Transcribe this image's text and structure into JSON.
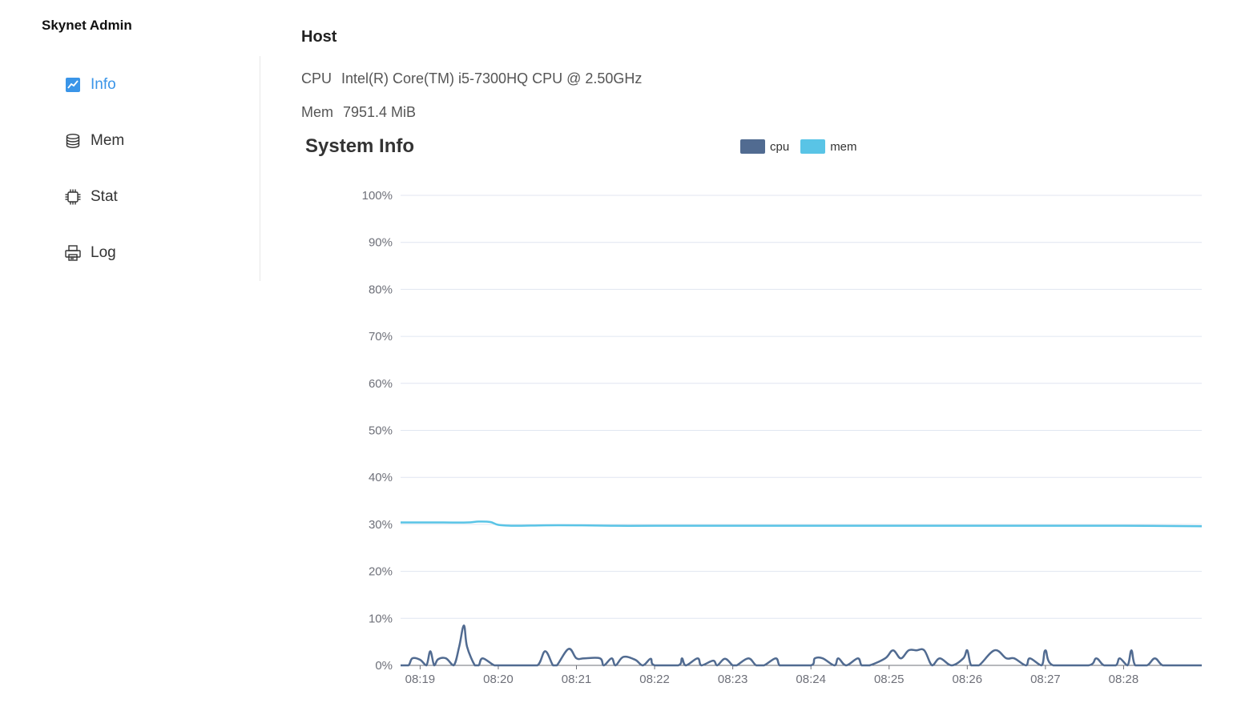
{
  "app": {
    "title": "Skynet Admin"
  },
  "sidebar": {
    "items": [
      {
        "label": "Info",
        "icon": "line-chart-icon",
        "active": true
      },
      {
        "label": "Mem",
        "icon": "database-icon",
        "active": false
      },
      {
        "label": "Stat",
        "icon": "chip-icon",
        "active": false
      },
      {
        "label": "Log",
        "icon": "printer-icon",
        "active": false
      }
    ]
  },
  "host": {
    "title": "Host",
    "cpu_label": "CPU",
    "cpu_value": "Intel(R) Core(TM) i5-7300HQ CPU @ 2.50GHz",
    "mem_label": "Mem",
    "mem_value": "7951.4 MiB"
  },
  "colors": {
    "accent": "#3a95e8",
    "cpu": "#516b91",
    "mem": "#59c4e6"
  },
  "chart_data": {
    "type": "line",
    "title": "System Info",
    "legend": [
      "cpu",
      "mem"
    ],
    "legend_position": "top-center",
    "grid": true,
    "ylim": [
      0,
      100
    ],
    "y_ticks": [
      "0%",
      "10%",
      "20%",
      "30%",
      "40%",
      "50%",
      "60%",
      "70%",
      "80%",
      "90%",
      "100%"
    ],
    "x_ticks": [
      "08:19",
      "08:20",
      "08:21",
      "08:22",
      "08:23",
      "08:24",
      "08:25",
      "08:26",
      "08:27",
      "08:28"
    ],
    "x_range_minutes": [
      18.75,
      29.0
    ],
    "series": [
      {
        "name": "mem",
        "x": [
          18.75,
          19.0,
          19.3,
          19.6,
          19.75,
          19.9,
          20.0,
          20.2,
          20.6,
          21.0,
          21.5,
          22.0,
          23.0,
          24.0,
          25.0,
          26.0,
          27.0,
          28.0,
          29.0
        ],
        "values": [
          30.4,
          30.4,
          30.4,
          30.4,
          30.6,
          30.5,
          29.9,
          29.7,
          29.8,
          29.8,
          29.7,
          29.7,
          29.7,
          29.7,
          29.7,
          29.7,
          29.7,
          29.7,
          29.6
        ]
      },
      {
        "name": "cpu",
        "x": [
          18.75,
          18.85,
          18.9,
          19.0,
          19.08,
          19.13,
          19.18,
          19.23,
          19.33,
          19.43,
          19.5,
          19.56,
          19.6,
          19.7,
          19.75,
          19.8,
          19.95,
          20.05,
          20.1,
          20.3,
          20.5,
          20.6,
          20.7,
          20.75,
          20.9,
          21.0,
          21.1,
          21.3,
          21.35,
          21.45,
          21.5,
          21.6,
          21.75,
          21.85,
          21.95,
          22.0,
          22.3,
          22.35,
          22.4,
          22.55,
          22.6,
          22.75,
          22.8,
          22.9,
          23.0,
          23.05,
          23.2,
          23.3,
          23.4,
          23.55,
          23.6,
          23.7,
          24.0,
          24.05,
          24.15,
          24.3,
          24.35,
          24.45,
          24.6,
          24.65,
          24.75,
          24.95,
          25.05,
          25.15,
          25.25,
          25.35,
          25.45,
          25.55,
          25.65,
          25.8,
          25.95,
          26.0,
          26.05,
          26.15,
          26.35,
          26.5,
          26.6,
          26.75,
          26.8,
          26.95,
          27.0,
          27.1,
          27.55,
          27.65,
          27.75,
          27.9,
          27.95,
          28.05,
          28.1,
          28.15,
          28.3,
          28.4,
          28.5,
          28.65,
          29.0
        ],
        "values": [
          0,
          0,
          1.5,
          1.2,
          0,
          3.0,
          0,
          1.3,
          1.5,
          0,
          4.0,
          8.5,
          4.0,
          0,
          0,
          1.5,
          0,
          0,
          0,
          0,
          0,
          3.0,
          0,
          0,
          3.5,
          1.5,
          1.5,
          1.5,
          0,
          1.5,
          0,
          1.8,
          1.2,
          0,
          1.4,
          0,
          0,
          1.5,
          0,
          1.5,
          0,
          1.0,
          0,
          1.4,
          0,
          0,
          1.5,
          0,
          0,
          1.5,
          0,
          0,
          0,
          1.5,
          1.5,
          0,
          1.5,
          0,
          1.5,
          0,
          0,
          1.5,
          3.2,
          1.5,
          3.2,
          3.2,
          3.2,
          0,
          1.5,
          0,
          1.5,
          3.2,
          0,
          0,
          3.2,
          1.5,
          1.5,
          0,
          1.5,
          0,
          3.2,
          0,
          0,
          1.5,
          0,
          0,
          1.5,
          0,
          3.2,
          0,
          0,
          1.5,
          0,
          0,
          0
        ]
      }
    ]
  }
}
